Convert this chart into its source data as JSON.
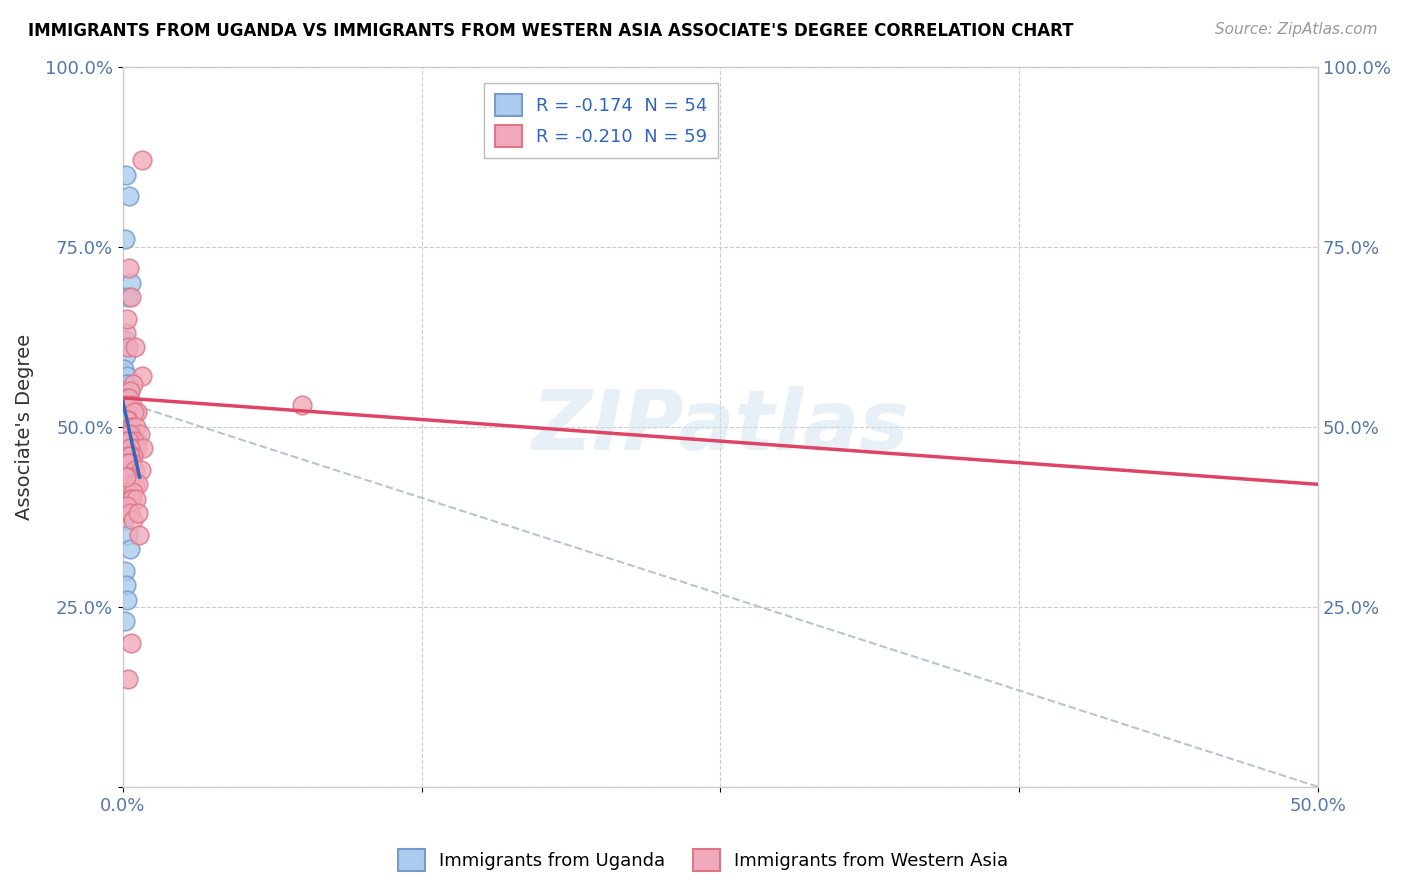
{
  "title": "IMMIGRANTS FROM UGANDA VS IMMIGRANTS FROM WESTERN ASIA ASSOCIATE'S DEGREE CORRELATION CHART",
  "source": "Source: ZipAtlas.com",
  "ylabel": "Associate's Degree",
  "yticks_labels": [
    "",
    "25.0%",
    "50.0%",
    "75.0%",
    "100.0%"
  ],
  "ytick_vals": [
    0,
    25,
    50,
    75,
    100
  ],
  "yticks_right_labels": [
    "100.0%",
    "75.0%",
    "50.0%",
    "25.0%"
  ],
  "yticks_right_vals": [
    100,
    75,
    50,
    25
  ],
  "xlim": [
    0,
    50
  ],
  "ylim": [
    0,
    100
  ],
  "legend_r1": "R = -0.174  N = 54",
  "legend_r2": "R = -0.210  N = 59",
  "uganda_color": "#aaccee",
  "western_color": "#f0aabb",
  "uganda_edge": "#7799cc",
  "western_edge": "#dd7788",
  "trendline_uganda_color": "#3366bb",
  "trendline_western_color": "#dd4466",
  "dashed_color": "#aabbcc",
  "uganda_scatter_x": [
    0.15,
    0.25,
    0.1,
    0.35,
    0.2,
    0.08,
    0.12,
    0.05,
    0.18,
    0.22,
    0.15,
    0.3,
    0.08,
    0.1,
    0.12,
    0.07,
    0.13,
    0.16,
    0.09,
    0.2,
    0.06,
    0.11,
    0.14,
    0.08,
    0.25,
    0.18,
    0.09,
    0.21,
    0.12,
    0.4,
    0.6,
    0.18,
    0.28,
    0.35,
    0.07,
    0.14,
    0.24,
    0.1,
    0.17,
    0.32,
    0.08,
    0.15,
    0.21,
    0.11,
    0.06,
    0.19,
    0.13,
    0.05,
    0.23,
    0.3,
    0.09,
    0.15,
    0.19,
    0.08
  ],
  "uganda_scatter_y": [
    85,
    82,
    76,
    70,
    68,
    62,
    60,
    58,
    57,
    56,
    56,
    55,
    55,
    54,
    54,
    53,
    53,
    53,
    52,
    52,
    51,
    51,
    51,
    50,
    50,
    50,
    50,
    49,
    49,
    49,
    48,
    48,
    48,
    47,
    47,
    46,
    46,
    45,
    45,
    44,
    44,
    43,
    42,
    41,
    40,
    39,
    38,
    37,
    35,
    33,
    30,
    28,
    26,
    23
  ],
  "western_scatter_x": [
    0.25,
    0.35,
    0.15,
    0.2,
    0.5,
    0.8,
    0.42,
    0.3,
    0.18,
    0.25,
    0.12,
    0.38,
    0.6,
    0.48,
    0.22,
    0.16,
    0.28,
    0.4,
    0.55,
    0.7,
    0.19,
    0.32,
    0.46,
    0.11,
    0.24,
    0.36,
    0.58,
    0.85,
    0.29,
    0.44,
    0.17,
    0.31,
    0.4,
    0.14,
    0.26,
    0.52,
    0.75,
    0.35,
    0.22,
    0.09,
    0.33,
    0.5,
    0.65,
    0.21,
    0.44,
    7.5,
    0.28,
    0.38,
    0.54,
    0.16,
    0.29,
    0.42,
    0.68,
    0.22,
    0.19,
    0.35,
    0.62,
    0.13,
    0.82
  ],
  "western_scatter_y": [
    72,
    68,
    63,
    61,
    61,
    57,
    56,
    55,
    54,
    54,
    53,
    53,
    52,
    52,
    51,
    51,
    50,
    50,
    50,
    49,
    49,
    49,
    48,
    48,
    48,
    47,
    47,
    47,
    47,
    46,
    46,
    46,
    45,
    45,
    45,
    44,
    44,
    43,
    43,
    43,
    42,
    42,
    42,
    41,
    41,
    53,
    40,
    40,
    40,
    39,
    38,
    37,
    35,
    15,
    65,
    20,
    38,
    43,
    87
  ],
  "trendline_uganda_x0": 0.0,
  "trendline_uganda_x1": 0.7,
  "trendline_uganda_y0": 53.5,
  "trendline_uganda_y1": 43.0,
  "trendline_western_x0": 0.0,
  "trendline_western_x1": 50.0,
  "trendline_western_y0": 54.0,
  "trendline_western_y1": 42.0,
  "dashed_x0": 0.0,
  "dashed_x1": 50.0,
  "dashed_y0": 53.5,
  "dashed_y1": 0.0
}
